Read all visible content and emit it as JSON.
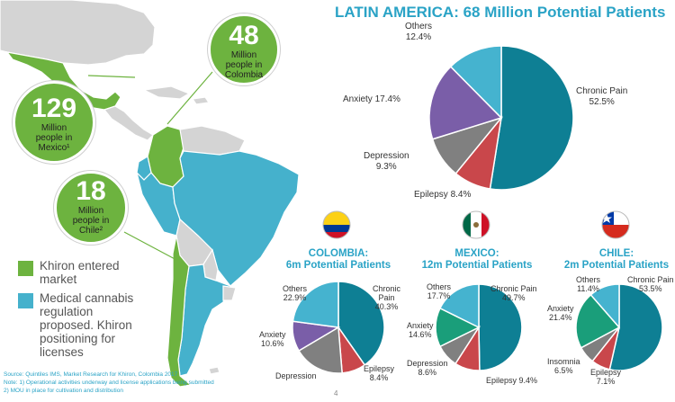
{
  "title": "LATIN AMERICA: 68 Million Potential Patients",
  "colors": {
    "chronic_pain": "#0e7f94",
    "epilepsy": "#c9474b",
    "depression": "#808080",
    "anxiety": "#7a5ea8",
    "others": "#45b3cf",
    "insomnia": "#7f7f7f",
    "anxiety_mx_cl": "#1a9e7a",
    "accent": "#2aa3c6",
    "khiron_green": "#6db33f",
    "medical_blue": "#45b1cc"
  },
  "bubbles": {
    "colombia": {
      "number": "48",
      "text": "Million\npeople in\nColombia"
    },
    "mexico": {
      "number": "129",
      "text": "Million\npeople in\nMexico¹"
    },
    "chile": {
      "number": "18",
      "text": "Million\npeople in\nChile²"
    }
  },
  "legend": {
    "khiron": "Khiron entered\nmarket",
    "medical": "Medical cannabis\nregulation\nproposed. Khiron\npositioning for\nlicenses"
  },
  "footnotes": {
    "source": "Source: Quintiles IMS, Market Research for Khiron, Colombia 2017",
    "note1": "Note: 1) Operational activities underway and license applications being submitted",
    "note2": "2) MOU in place for cultivation and distribution"
  },
  "page_number": "4",
  "chart_data": [
    {
      "type": "pie",
      "title": "LATIN AMERICA: 68 Million Potential Patients",
      "labels": [
        "Chronic Pain",
        "Epilepsy",
        "Depression",
        "Anxiety",
        "Others"
      ],
      "values": [
        52.5,
        8.4,
        9.3,
        17.4,
        12.4
      ],
      "slice_labels": [
        "Chronic Pain\n52.5%",
        "Epilepsy 8.4%",
        "Depression\n9.3%",
        "Anxiety 17.4%",
        "Others\n12.4%"
      ]
    },
    {
      "type": "pie",
      "title": "COLOMBIA:\n6m Potential Patients",
      "labels": [
        "Chronic Pain",
        "Epilepsy",
        "Depression",
        "Anxiety",
        "Others"
      ],
      "values": [
        40.3,
        8.4,
        17.8,
        10.6,
        22.9
      ],
      "slice_labels": [
        "Chronic\nPain\n40.3%",
        "Epilepsy\n8.4%",
        "Depression",
        "Anxiety\n10.6%",
        "Others\n22.9%"
      ]
    },
    {
      "type": "pie",
      "title": "MEXICO:\n12m Potential Patients",
      "labels": [
        "Chronic Pain",
        "Epilepsy",
        "Depression",
        "Anxiety",
        "Others"
      ],
      "values": [
        49.7,
        9.4,
        8.6,
        14.6,
        17.7
      ],
      "slice_labels": [
        "Chronic Pain\n49.7%",
        "Epilepsy 9.4%",
        "Depression\n8.6%",
        "Anxiety\n14.6%",
        "Others\n17.7%"
      ]
    },
    {
      "type": "pie",
      "title": "CHILE:\n2m Potential Patients",
      "labels": [
        "Chronic Pain",
        "Epilepsy",
        "Insomnia",
        "Anxiety",
        "Others"
      ],
      "values": [
        53.5,
        7.1,
        6.5,
        21.4,
        11.4
      ],
      "slice_labels": [
        "Chronic Pain\n53.5%",
        "Epilepsy\n7.1%",
        "Insomnia\n6.5%",
        "Anxiety\n21.4%",
        "Others\n11.4%"
      ]
    }
  ]
}
